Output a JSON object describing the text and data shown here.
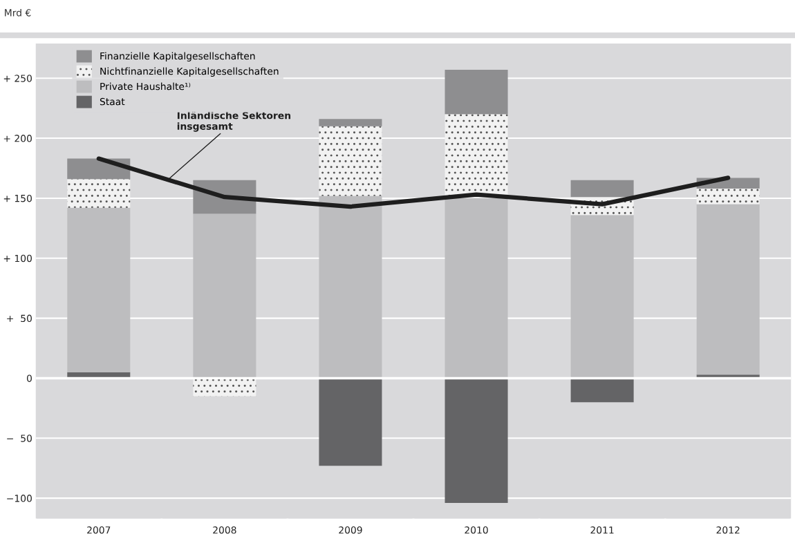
{
  "chart_data": {
    "type": "bar",
    "stacked": true,
    "ylabel": "Mrd €",
    "categories": [
      "2007",
      "2008",
      "2009",
      "2010",
      "2011",
      "2012"
    ],
    "series": [
      {
        "name": "Staat",
        "color": "#646466",
        "values": [
          5,
          0,
          -73,
          -104,
          -20,
          3
        ]
      },
      {
        "name": "Private Haushalte¹⁾",
        "color": "#bdbdbf",
        "values": [
          137,
          137,
          152,
          150,
          136,
          142
        ]
      },
      {
        "name": "Nichtfinanzielle Kapitalgesellschaften",
        "color": "#f2f2f2",
        "values": [
          24,
          -15,
          58,
          70,
          15,
          13
        ]
      },
      {
        "name": "Finanzielle Kapitalgesellschaften",
        "color": "#8e8e90",
        "values": [
          17,
          28,
          6,
          37,
          14,
          9
        ]
      },
      {
        "name": "Inländische Sektoren insgesamt",
        "type": "line",
        "color": "#1e1e1e",
        "values": [
          183,
          151,
          143,
          153,
          145,
          167
        ]
      }
    ],
    "ylim": [
      -117,
      279
    ],
    "yticks": [
      {
        "value": -100,
        "label": "−100"
      },
      {
        "value": -50,
        "label": "−  50"
      },
      0,
      {
        "value": 50,
        "label": "+  50"
      },
      {
        "value": 100,
        "label": "+ 100"
      },
      {
        "value": 150,
        "label": "+ 150"
      },
      {
        "value": 200,
        "label": "+ 200"
      },
      {
        "value": 250,
        "label": "+ 250"
      }
    ],
    "grid": "y",
    "legend": "top left"
  }
}
